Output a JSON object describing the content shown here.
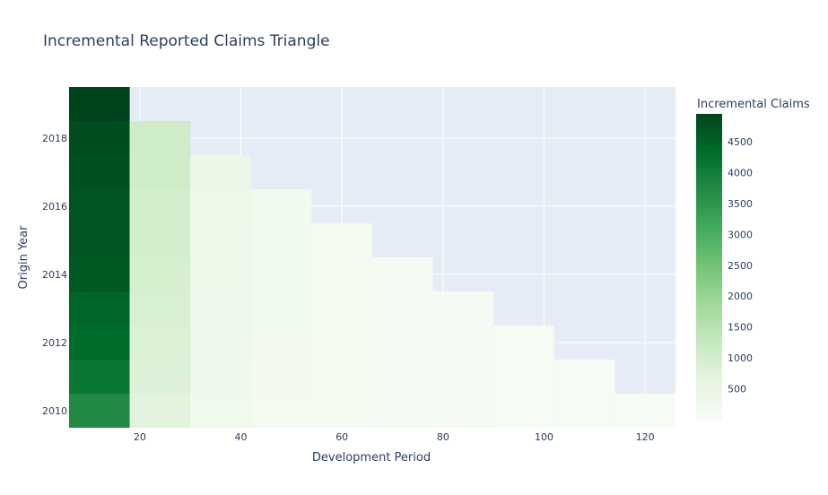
{
  "chart_data": {
    "type": "heatmap",
    "title": "Incremental Reported Claims Triangle",
    "xlabel": "Development Period",
    "ylabel": "Origin Year",
    "x": [
      12,
      24,
      36,
      48,
      60,
      72,
      84,
      96,
      108,
      120
    ],
    "y": [
      2010,
      2011,
      2012,
      2013,
      2014,
      2015,
      2016,
      2017,
      2018,
      2019
    ],
    "xlim": [
      6,
      126
    ],
    "ylim": [
      2009.5,
      2019.5
    ],
    "xticks": [
      20,
      40,
      60,
      80,
      100,
      120
    ],
    "yticks": [
      2010,
      2012,
      2014,
      2016,
      2018
    ],
    "z": [
      [
        3750,
        650,
        260,
        150,
        110,
        80,
        60,
        40,
        30,
        20
      ],
      [
        4150,
        800,
        300,
        170,
        120,
        90,
        60,
        45,
        30,
        null
      ],
      [
        4350,
        850,
        320,
        180,
        130,
        90,
        70,
        50,
        null,
        null
      ],
      [
        4450,
        900,
        330,
        190,
        130,
        95,
        70,
        null,
        null,
        null
      ],
      [
        4650,
        950,
        350,
        200,
        140,
        100,
        null,
        null,
        null,
        null
      ],
      [
        4700,
        980,
        360,
        210,
        150,
        null,
        null,
        null,
        null,
        null
      ],
      [
        4700,
        1000,
        380,
        220,
        null,
        null,
        null,
        null,
        null,
        null
      ],
      [
        4750,
        1050,
        400,
        null,
        null,
        null,
        null,
        null,
        null,
        null
      ],
      [
        4800,
        1100,
        null,
        null,
        null,
        null,
        null,
        null,
        null,
        null
      ],
      [
        4950,
        null,
        null,
        null,
        null,
        null,
        null,
        null,
        null,
        null
      ]
    ],
    "colorscale": "Greens",
    "colorbar": {
      "title": "Incremental Claims",
      "range": [
        0,
        4950
      ],
      "ticks": [
        500,
        1000,
        1500,
        2000,
        2500,
        3000,
        3500,
        4000,
        4500
      ]
    },
    "grid": true
  },
  "colors": {
    "plot_bg": "#e5ecf6",
    "grid": "#ffffff",
    "text": "#2a3f5f"
  }
}
